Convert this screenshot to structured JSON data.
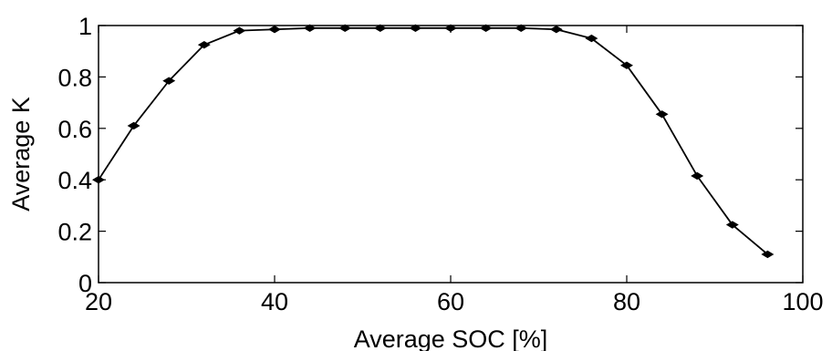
{
  "chart_data": {
    "type": "line",
    "title": "",
    "xlabel": "Average SOC [%]",
    "ylabel": "Average K",
    "xlim": [
      20,
      100
    ],
    "ylim": [
      0,
      1
    ],
    "xticks": [
      20,
      40,
      60,
      80,
      100
    ],
    "yticks": [
      0,
      0.2,
      0.4,
      0.6,
      0.8,
      1
    ],
    "xtick_labels": [
      "20",
      "40",
      "60",
      "80",
      "100"
    ],
    "ytick_labels": [
      "0",
      "0.2",
      "0.4",
      "0.6",
      "0.8",
      "1"
    ],
    "grid": false,
    "legend": "none",
    "series": [
      {
        "color": "#000000",
        "marker": "filled-diamond",
        "x": [
          20,
          24,
          28,
          32,
          36,
          40,
          44,
          48,
          52,
          56,
          60,
          64,
          68,
          72,
          76,
          80,
          84,
          88,
          92,
          96
        ],
        "y": [
          0.4,
          0.61,
          0.785,
          0.925,
          0.98,
          0.985,
          0.99,
          0.99,
          0.99,
          0.99,
          0.99,
          0.99,
          0.99,
          0.985,
          0.95,
          0.845,
          0.655,
          0.415,
          0.225,
          0.11
        ]
      }
    ]
  }
}
